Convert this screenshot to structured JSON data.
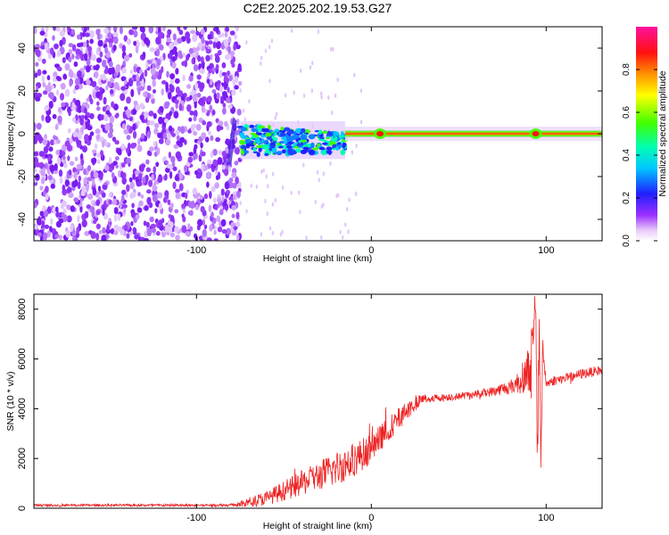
{
  "colors": {
    "snr_line": "#ee2222",
    "frame": "#000000",
    "background": "#ffffff"
  },
  "chart_data": [
    {
      "type": "heatmap",
      "title": "C2E2.2025.202.19.53.G27",
      "xlabel": "Height of straight line (km)",
      "ylabel": "Frequency (Hz)",
      "xlim": [
        -193,
        132
      ],
      "ylim": [
        -50,
        50
      ],
      "x_ticks": [
        -100,
        0,
        100
      ],
      "y_ticks": [
        -40,
        -20,
        0,
        20,
        40
      ],
      "colormap": "rainbow (white-violet-blue-cyan-green-yellow-red-magenta)",
      "colorbar": {
        "label": "Normalized spectral amplitude",
        "range": [
          0,
          1
        ],
        "ticks": [
          0,
          0.2,
          0.4,
          0.6,
          0.8
        ]
      },
      "regions": [
        {
          "x_range": [
            -193,
            -75
          ],
          "description": "noise",
          "amplitude": 0.1
        },
        {
          "x_range": [
            -85,
            -75
          ],
          "frequency_center": -5,
          "amplitude": 0.2
        },
        {
          "x_range": [
            -75,
            -15
          ],
          "frequency_center": -3,
          "frequency_spread": 8,
          "amplitude": 0.35
        },
        {
          "x_range": [
            -15,
            132
          ],
          "frequency_center": 0,
          "frequency_spread": 1,
          "amplitude": 0.95
        }
      ],
      "grid": false
    },
    {
      "type": "line",
      "xlabel": "Height of straight line (km)",
      "ylabel": "SNR (10 * v/v)",
      "xlim": [
        -193,
        132
      ],
      "ylim": [
        0,
        8600
      ],
      "x_ticks": [
        -100,
        0,
        100
      ],
      "y_ticks": [
        0,
        2000,
        4000,
        6000,
        8000
      ],
      "grid": false,
      "series": [
        {
          "color": "#ee2222",
          "x": [
            -193,
            -160,
            -130,
            -100,
            -80,
            -75,
            -70,
            -60,
            -50,
            -40,
            -30,
            -20,
            -10,
            0,
            10,
            20,
            25,
            30,
            40,
            50,
            60,
            70,
            80,
            85,
            90,
            92,
            94,
            95,
            96,
            97,
            98,
            100,
            105,
            110,
            120,
            132
          ],
          "y": [
            120,
            120,
            120,
            120,
            130,
            150,
            250,
            400,
            700,
            1000,
            1300,
            1600,
            1950,
            2400,
            3200,
            3900,
            4200,
            4400,
            4450,
            4500,
            4600,
            4700,
            4900,
            5100,
            5600,
            6000,
            8300,
            2200,
            7300,
            1900,
            6500,
            5000,
            5150,
            5200,
            5400,
            5550
          ],
          "noise_envelope": [
            50,
            50,
            50,
            50,
            60,
            120,
            200,
            300,
            400,
            500,
            600,
            700,
            700,
            600,
            500,
            400,
            300,
            200,
            150,
            150,
            150,
            200,
            300,
            500,
            900,
            1800,
            500,
            1500,
            1200,
            600,
            400,
            200,
            200,
            200,
            200,
            200
          ]
        }
      ]
    }
  ]
}
